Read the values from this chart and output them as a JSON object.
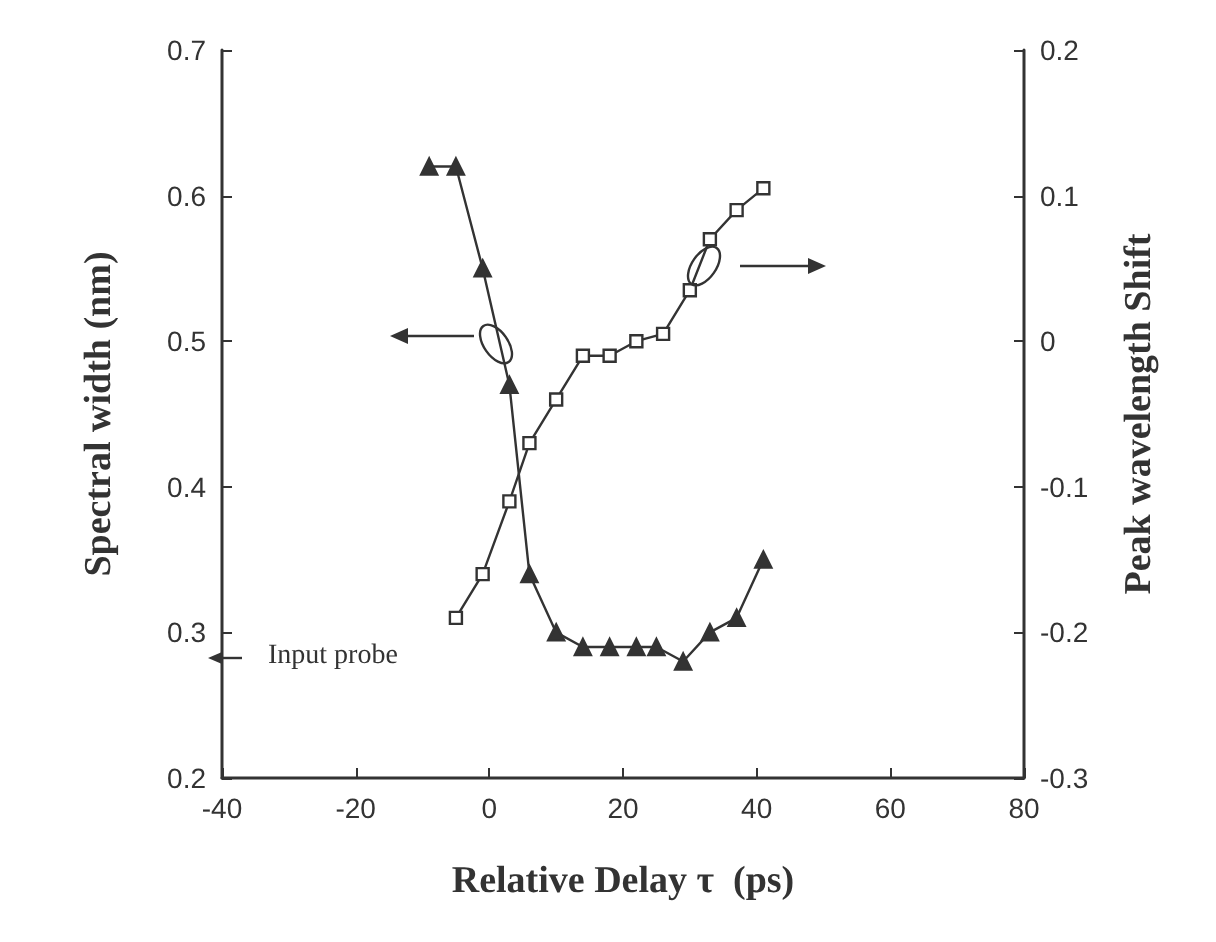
{
  "chart_data": {
    "type": "line",
    "xlabel": "Relative Delay τ  (ps)",
    "ylabel": "Spectral width (nm)",
    "y2label": "Peak wavelength Shift",
    "xlim": [
      -40,
      80
    ],
    "xticks": [
      -40,
      -20,
      0,
      20,
      40,
      60,
      80
    ],
    "ylim": [
      0.2,
      0.7
    ],
    "yticks": [
      0.2,
      0.3,
      0.4,
      0.5,
      0.6,
      0.7
    ],
    "y2lim": [
      -0.3,
      0.2
    ],
    "y2ticks": [
      -0.3,
      -0.2,
      -0.1,
      0,
      0.1,
      0.2
    ],
    "series": [
      {
        "color": "#333333",
        "marker": "triangle",
        "x": [
          -9,
          -5,
          -1,
          3,
          6,
          10,
          14,
          18,
          22,
          25,
          29,
          33,
          37,
          41
        ],
        "values": [
          0.62,
          0.62,
          0.55,
          0.47,
          0.34,
          0.3,
          0.29,
          0.29,
          0.29,
          0.29,
          0.28,
          0.3,
          0.31,
          0.35
        ]
      },
      {
        "color": "#333333",
        "marker": "square",
        "axis": "y2",
        "x": [
          -5,
          -1,
          3,
          6,
          10,
          14,
          18,
          22,
          26,
          30,
          33,
          37,
          41
        ],
        "values": [
          -0.19,
          -0.16,
          -0.11,
          -0.07,
          -0.04,
          -0.01,
          -0.01,
          0,
          0.005,
          0.035,
          0.07,
          0.09,
          0.105
        ]
      }
    ],
    "annotations": [
      "Input probe"
    ]
  }
}
